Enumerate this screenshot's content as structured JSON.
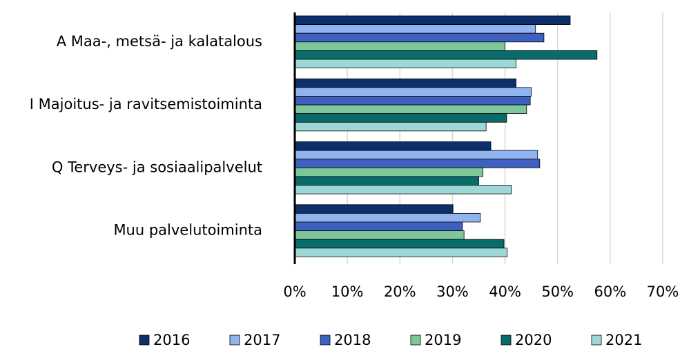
{
  "chart_data": {
    "type": "hbar",
    "categories": [
      "A Maa-, metsä- ja kalatalous",
      "I Majoitus- ja ravitsemistoiminta",
      "Q Terveys- ja sosiaalipalvelut",
      "Muu palvelutoiminta"
    ],
    "series": [
      {
        "name": "2016",
        "color": "#0d2f6b",
        "values": [
          52.4,
          42.1,
          37.3,
          30.1
        ]
      },
      {
        "name": "2017",
        "color": "#8fb4f0",
        "values": [
          45.8,
          45.0,
          46.2,
          35.3
        ]
      },
      {
        "name": "2018",
        "color": "#4060c0",
        "values": [
          47.4,
          44.8,
          46.6,
          31.9
        ]
      },
      {
        "name": "2019",
        "color": "#7ec79a",
        "values": [
          40.0,
          44.1,
          35.8,
          32.2
        ]
      },
      {
        "name": "2020",
        "color": "#0a6b6b",
        "values": [
          57.5,
          40.3,
          35.0,
          39.8
        ]
      },
      {
        "name": "2021",
        "color": "#9ed8d6",
        "values": [
          42.1,
          36.4,
          41.2,
          40.4
        ]
      }
    ],
    "xlim": [
      0,
      70
    ],
    "xticks": [
      {
        "value": 0,
        "label": "0%"
      },
      {
        "value": 10,
        "label": "10%"
      },
      {
        "value": 20,
        "label": "20%"
      },
      {
        "value": 30,
        "label": "30%"
      },
      {
        "value": 40,
        "label": "40%"
      },
      {
        "value": 50,
        "label": "50%"
      },
      {
        "value": 60,
        "label": "60%"
      },
      {
        "value": 70,
        "label": "70%"
      }
    ],
    "grid": true,
    "legend": "bottom"
  }
}
